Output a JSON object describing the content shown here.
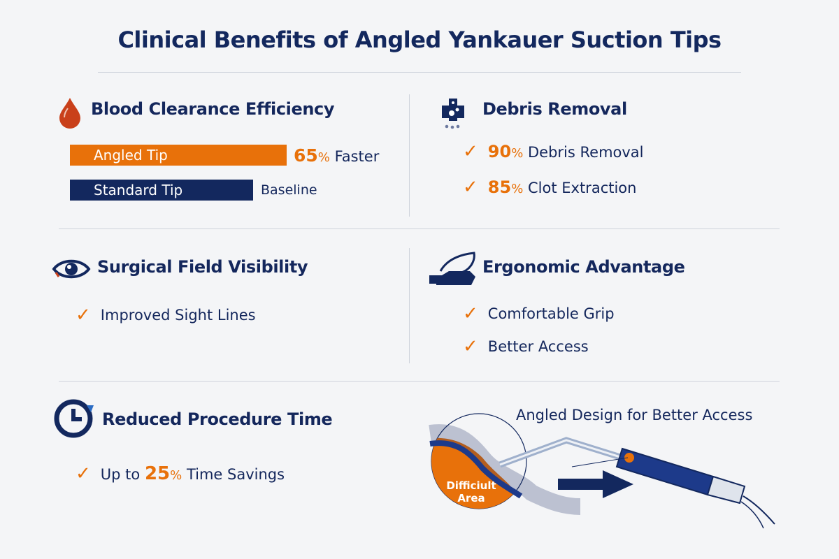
{
  "title": "Clinical Benefits of Angled Yankauer Suction Tips",
  "colors": {
    "navy": "#13285e",
    "orange": "#e8710a",
    "background": "#f4f5f7"
  },
  "blood": {
    "icon": "blood-drop-icon",
    "heading": "Blood Clearance Efficiency",
    "bars": [
      {
        "label": "Angled Tip",
        "value_num": "65",
        "value_unit": "%",
        "value_text": "Faster",
        "color": "#e8710a"
      },
      {
        "label": "Standard Tip",
        "value_text": "Baseline",
        "color": "#13285e"
      }
    ]
  },
  "debris": {
    "icon": "debris-icon",
    "heading": "Debris Removal",
    "items": [
      {
        "num": "90",
        "unit": "%",
        "text": "Debris Removal"
      },
      {
        "num": "85",
        "unit": "%",
        "text": "Clot Extraction"
      }
    ]
  },
  "visibility": {
    "icon": "eye-icon",
    "heading": "Surgical Field Visibility",
    "items": [
      "Improved Sight Lines"
    ]
  },
  "ergonomic": {
    "icon": "hand-icon",
    "heading": "Ergonomic Advantage",
    "items": [
      "Comfortable Grip",
      "Better Access"
    ]
  },
  "time": {
    "icon": "clock-icon",
    "heading": "Reduced Procedure Time",
    "prefix": "Up to",
    "num": "25",
    "unit": "%",
    "suffix": "Time Savings"
  },
  "illustration": {
    "caption": "Angled Design for Better Access",
    "area_label_1": "Difficiult",
    "area_label_2": "Area"
  }
}
